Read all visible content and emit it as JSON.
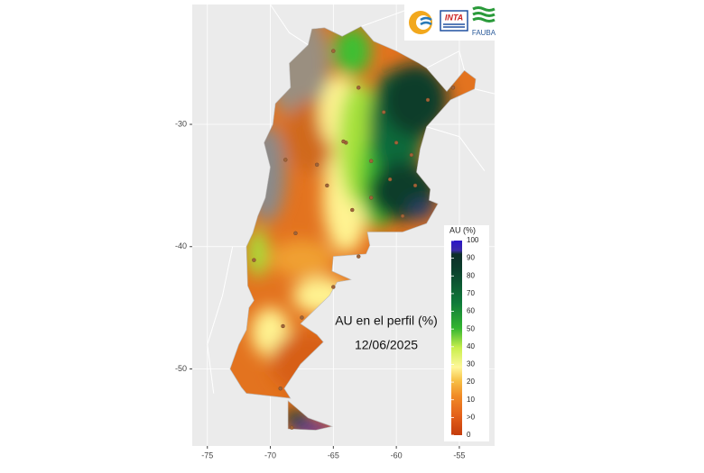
{
  "map": {
    "annotation": "AU en el perfil (%)",
    "date": "12/06/2025",
    "xticks": [
      -75,
      -70,
      -65,
      -60,
      -55
    ],
    "yticks": [
      -30,
      -40,
      -50
    ],
    "xlim": [
      -76.2,
      -52.2
    ],
    "ylim": [
      -56.3,
      -20.2
    ],
    "legend": {
      "title": "AU (%)",
      "labels": [
        "100",
        "90",
        "80",
        "70",
        "60",
        "50",
        "40",
        "30",
        "20",
        "10",
        ">0",
        "0"
      ]
    }
  },
  "logos": {
    "inta": "INTA",
    "fauba": "FAUBA"
  }
}
